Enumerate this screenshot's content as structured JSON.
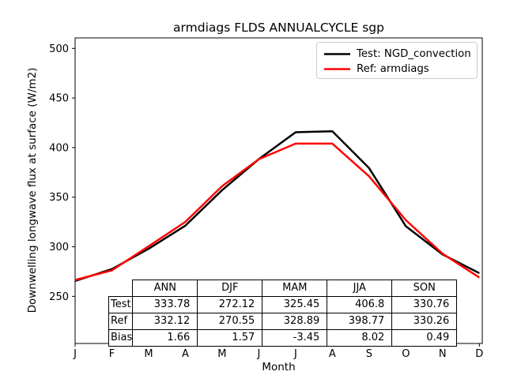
{
  "title": "armdiags FLDS ANNUALCYCLE sgp",
  "chart_data": {
    "type": "line",
    "title": "armdiags FLDS ANNUALCYCLE sgp",
    "xlabel": "Month",
    "ylabel": "Downwelling longwave flux at surface (W/m2)",
    "x_tick_labels": [
      "J",
      "F",
      "M",
      "A",
      "M",
      "J",
      "J",
      "A",
      "S",
      "O",
      "N",
      "D"
    ],
    "y_ticks": [
      250,
      300,
      350,
      400,
      450,
      500
    ],
    "xlim": [
      0,
      11.08
    ],
    "ylim": [
      202.5,
      510.6
    ],
    "grid": false,
    "legend_position": "upper right",
    "series": [
      {
        "name": "Test: NGD_convection",
        "color": "#000000",
        "values": [
          265.5,
          277.5,
          298.0,
          321.3,
          357.1,
          388.4,
          415.5,
          416.5,
          379.3,
          320.7,
          292.3,
          273.4
        ]
      },
      {
        "name": "Ref: armdiags",
        "color": "#ff0000",
        "values": [
          266.5,
          276.2,
          300.5,
          325.1,
          361.1,
          388.3,
          404.0,
          404.0,
          371.0,
          326.8,
          293.0,
          269.0
        ]
      }
    ]
  },
  "table": {
    "columns": [
      "ANN",
      "DJF",
      "MAM",
      "JJA",
      "SON"
    ],
    "rows": [
      {
        "label": "Test",
        "values": [
          "333.78",
          "272.12",
          "325.45",
          "406.8",
          "330.76"
        ]
      },
      {
        "label": "Ref",
        "values": [
          "332.12",
          "270.55",
          "328.89",
          "398.77",
          "330.26"
        ]
      },
      {
        "label": "Bias",
        "values": [
          "1.66",
          "1.57",
          "-3.45",
          "8.02",
          "0.49"
        ]
      }
    ]
  }
}
